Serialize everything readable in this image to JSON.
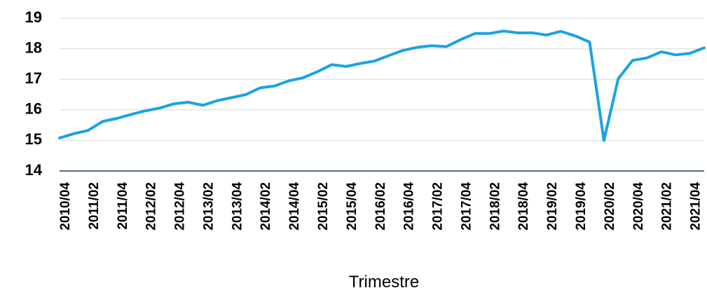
{
  "chart_data": {
    "type": "line",
    "x_label": "Trimestre",
    "categories": [
      "2010/04",
      null,
      "2011/02",
      null,
      "2011/04",
      null,
      "2012/02",
      null,
      "2012/04",
      null,
      "2013/02",
      null,
      "2013/04",
      null,
      "2014/02",
      null,
      "2014/04",
      null,
      "2015/02",
      null,
      "2015/04",
      null,
      "2016/02",
      null,
      "2016/04",
      null,
      "2017/02",
      null,
      "2017/04",
      null,
      "2018/02",
      null,
      "2018/04",
      null,
      "2019/02",
      null,
      "2019/04",
      null,
      "2020/02",
      null,
      "2020/04",
      null,
      "2021/02",
      null,
      "2021/04",
      null
    ],
    "series": [
      {
        "color": "#1aa3e3",
        "values": [
          15.08,
          15.22,
          15.33,
          15.62,
          15.72,
          15.85,
          15.97,
          16.06,
          16.2,
          16.25,
          16.15,
          16.3,
          16.4,
          16.5,
          16.72,
          16.78,
          16.95,
          17.05,
          17.25,
          17.48,
          17.42,
          17.52,
          17.6,
          17.78,
          17.95,
          18.05,
          18.1,
          18.07,
          18.3,
          18.5,
          18.5,
          18.58,
          18.52,
          18.52,
          18.45,
          18.57,
          18.42,
          18.22,
          15.0,
          17.02,
          17.62,
          17.7,
          17.9,
          17.8,
          17.85,
          18.03
        ]
      }
    ],
    "ylim": [
      14,
      19
    ],
    "yticks": [
      14,
      15,
      16,
      17,
      18,
      19
    ],
    "grid": true
  }
}
